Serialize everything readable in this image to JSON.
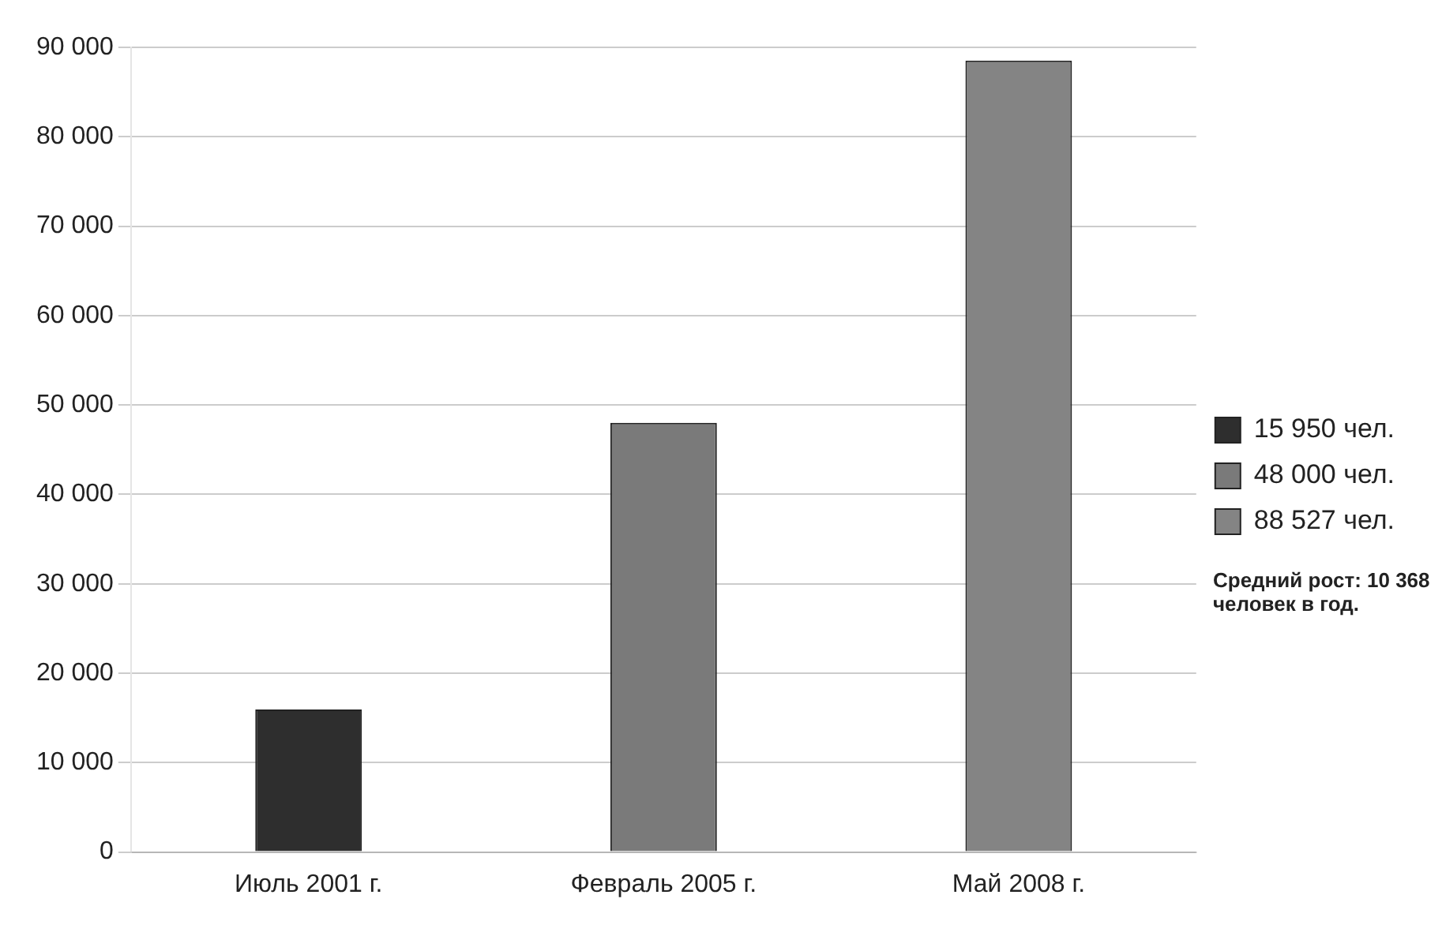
{
  "chart_data": {
    "type": "bar",
    "categories": [
      "Июль 2001 г.",
      "Февраль 2005 г.",
      "Май 2008 г."
    ],
    "series": [
      {
        "name": "15 950 чел.",
        "color": "#2e2e2e",
        "values": [
          15950,
          null,
          null
        ]
      },
      {
        "name": "48 000 чел.",
        "color": "#7a7a7a",
        "values": [
          null,
          48000,
          null
        ]
      },
      {
        "name": "88 527 чел.",
        "color": "#848484",
        "values": [
          null,
          null,
          88527
        ]
      }
    ],
    "stacked": true,
    "ylim": [
      0,
      90000
    ],
    "yticks": [
      {
        "value": 0,
        "label": "0"
      },
      {
        "value": 10000,
        "label": "10 000"
      },
      {
        "value": 20000,
        "label": "20 000"
      },
      {
        "value": 30000,
        "label": "30 000"
      },
      {
        "value": 40000,
        "label": "40 000"
      },
      {
        "value": 50000,
        "label": "50 000"
      },
      {
        "value": 60000,
        "label": "60 000"
      },
      {
        "value": 70000,
        "label": "70 000"
      },
      {
        "value": 80000,
        "label": "80 000"
      },
      {
        "value": 90000,
        "label": "90 000"
      }
    ],
    "grid": "y",
    "legend": "right",
    "annotations": [
      "Средний рост: 10 368 человек в год."
    ]
  }
}
